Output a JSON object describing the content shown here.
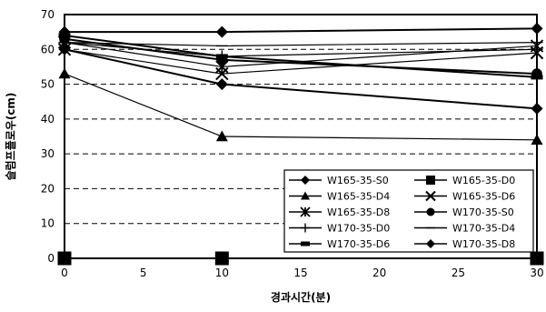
{
  "chart_data": {
    "type": "line",
    "title": "",
    "xlabel": "경과시간(분)",
    "ylabel": "슬럼프플로우(cm)",
    "xlim": [
      0,
      30
    ],
    "ylim": [
      0,
      70
    ],
    "x_ticks": [
      0,
      5,
      10,
      15,
      20,
      25,
      30
    ],
    "y_ticks": [
      0,
      10,
      20,
      30,
      40,
      50,
      60,
      70
    ],
    "grid": "horizontal-dashed",
    "legend_position": "bottom-right",
    "x": [
      0,
      10,
      30
    ],
    "series": [
      {
        "name": "W165-35-S0",
        "marker": "diamond",
        "values": [
          60,
          50,
          43
        ]
      },
      {
        "name": "W165-35-D0",
        "marker": "square",
        "values": [
          0,
          0,
          0
        ]
      },
      {
        "name": "W165-35-D4",
        "marker": "triangle",
        "values": [
          53,
          35,
          34
        ]
      },
      {
        "name": "W165-35-D6",
        "marker": "x",
        "values": [
          60,
          53,
          59
        ]
      },
      {
        "name": "W165-35-D8",
        "marker": "star",
        "values": [
          62,
          55,
          61
        ]
      },
      {
        "name": "W170-35-S0",
        "marker": "circle",
        "values": [
          63,
          57,
          53
        ]
      },
      {
        "name": "W170-35-D0",
        "marker": "plus",
        "values": [
          62,
          58,
          60
        ]
      },
      {
        "name": "W170-35-D4",
        "marker": "dash",
        "values": [
          62,
          61,
          62
        ]
      },
      {
        "name": "W170-35-D6",
        "marker": "bar",
        "values": [
          64,
          58,
          52
        ]
      },
      {
        "name": "W170-35-D8",
        "marker": "diamond",
        "values": [
          65,
          65,
          66
        ]
      }
    ]
  }
}
